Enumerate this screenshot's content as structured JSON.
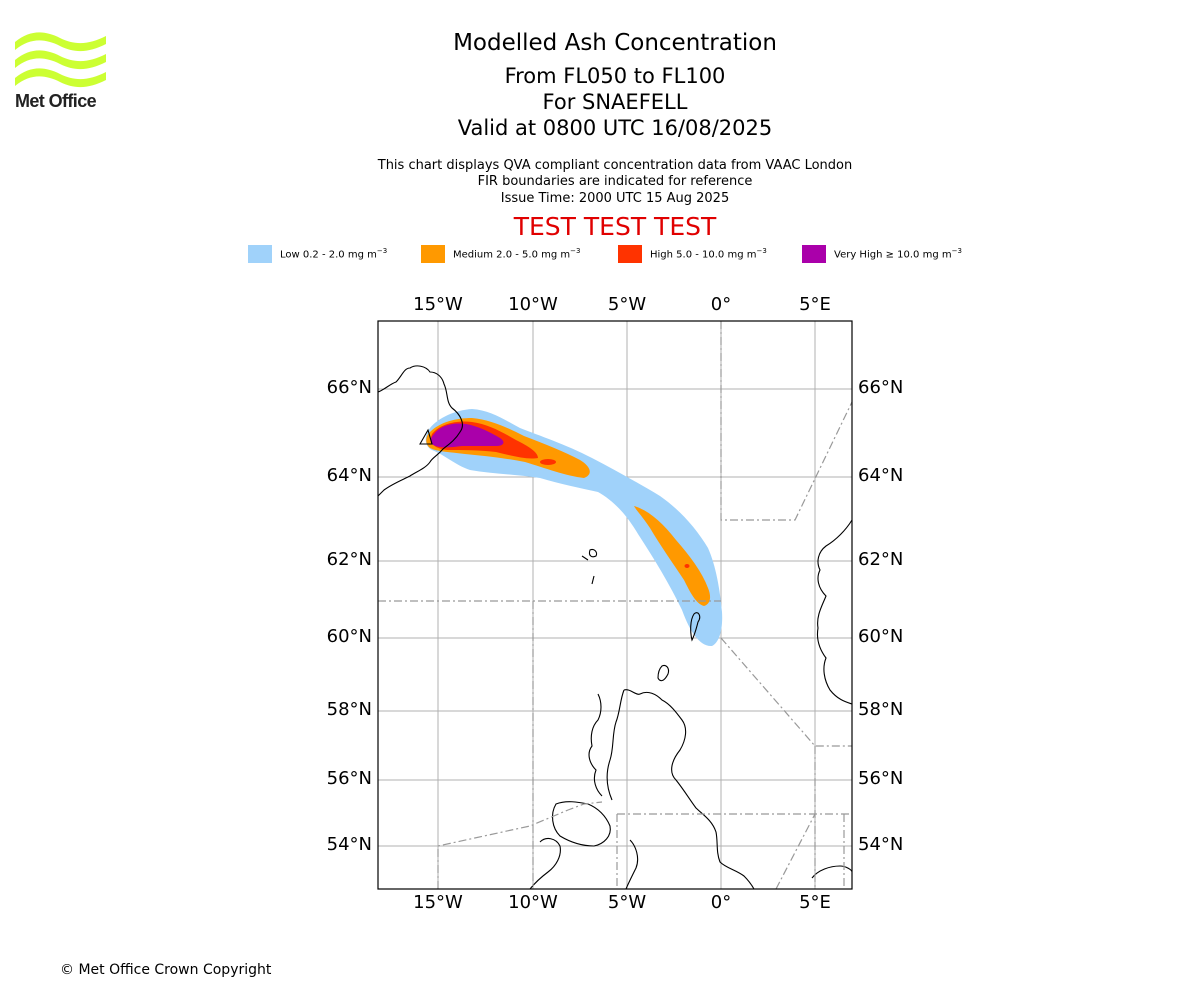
{
  "logo": {
    "text": "Met Office",
    "color": "#ccff33"
  },
  "header": {
    "title": "Modelled Ash Concentration",
    "levels": "From FL050 to FL100",
    "volcano": "For SNAEFELL",
    "valid": "Valid at 0800 UTC 16/08/2025",
    "info1": "This chart displays QVA compliant concentration data from VAAC London",
    "info2": "FIR boundaries are indicated for reference",
    "issue": "Issue Time: 2000 UTC 15 Aug 2025",
    "test_banner": "TEST TEST TEST"
  },
  "legend": [
    {
      "label": "Low 0.2 - 2.0 mg m",
      "color": "#a0d2fa"
    },
    {
      "label": "Medium 2.0 - 5.0 mg m",
      "color": "#ff9900"
    },
    {
      "label": "High 5.0 - 10.0 mg m",
      "color": "#ff3300"
    },
    {
      "label": "Very High ≥ 10.0 mg m",
      "color": "#aa00aa"
    }
  ],
  "legend_unit_exp": "−3",
  "map": {
    "lon_labels": [
      "15°W",
      "10°W",
      "5°W",
      "0°",
      "5°E"
    ],
    "lat_labels": [
      "66°N",
      "64°N",
      "62°N",
      "60°N",
      "58°N",
      "56°N",
      "54°N"
    ],
    "lon_ticks": [
      -15,
      -10,
      -5,
      0,
      5
    ],
    "lat_ticks": [
      66,
      64,
      62,
      60,
      58,
      56,
      54
    ]
  },
  "footer": {
    "copyright": "© Met Office Crown Copyright"
  }
}
